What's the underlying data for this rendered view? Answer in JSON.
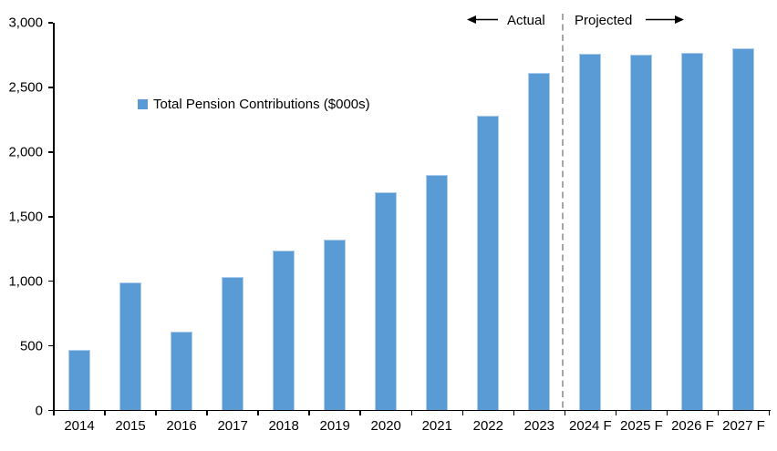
{
  "chart_data": {
    "type": "bar",
    "legend": "Total Pension Contributions ($000s)",
    "categories": [
      "2014",
      "2015",
      "2016",
      "2017",
      "2018",
      "2019",
      "2020",
      "2021",
      "2022",
      "2023",
      "2024 F",
      "2025 F",
      "2026 F",
      "2027 F"
    ],
    "values": [
      470,
      990,
      610,
      1030,
      1240,
      1320,
      1690,
      1820,
      2280,
      2610,
      2760,
      2750,
      2770,
      2800
    ],
    "ylim": [
      0,
      3000
    ],
    "ytick_values": [
      0,
      500,
      1000,
      1500,
      2000,
      2500,
      3000
    ],
    "ytick_labels": [
      "0",
      "500",
      "1,000",
      "1,500",
      "2,000",
      "2,500",
      "3,000"
    ],
    "xlabel": "",
    "ylabel": "",
    "title": "",
    "grid": "off",
    "legend_position": "upper-left-inside",
    "annotations": {
      "actual_label": "Actual",
      "projected_label": "Projected",
      "divider_after_index": 9
    },
    "colors": {
      "bar": "#5b9bd5",
      "bar_edge": "#aecdec",
      "axis": "#000000",
      "divider": "#a6a6a6",
      "text": "#000000"
    }
  }
}
